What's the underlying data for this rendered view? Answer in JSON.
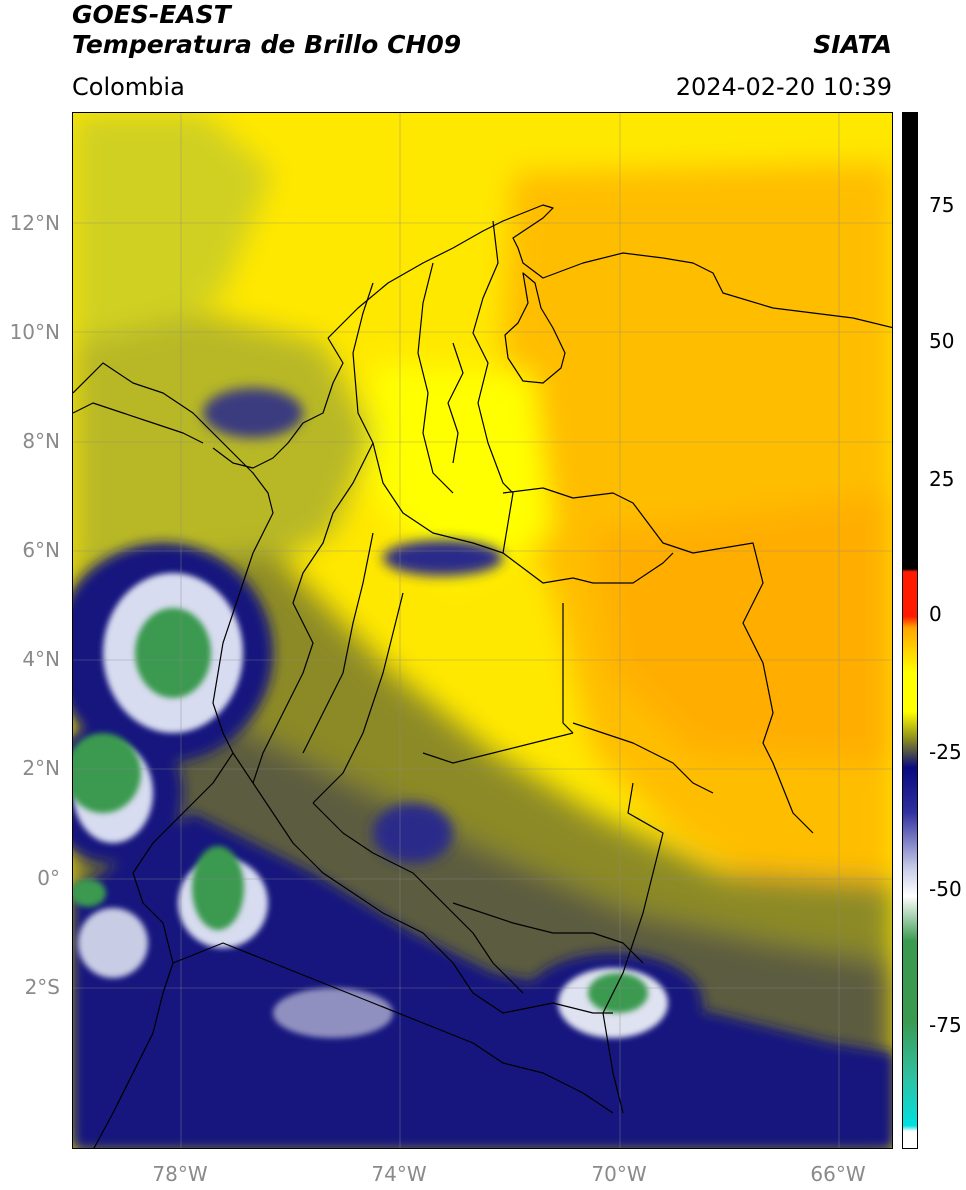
{
  "header": {
    "satellite": "GOES-EAST",
    "product": "Temperatura de Brillo CH09",
    "agency": "SIATA",
    "region": "Colombia",
    "timestamp": "2024-02-20 10:39"
  },
  "map": {
    "extent": {
      "lon_min": -79.9,
      "lon_max": -64.95,
      "lat_min": -4.3,
      "lat_max": 14.0
    },
    "lat_ticks": [
      {
        "value": 12,
        "label": "12°N"
      },
      {
        "value": 10,
        "label": "10°N"
      },
      {
        "value": 8,
        "label": "8°N"
      },
      {
        "value": 6,
        "label": "6°N"
      },
      {
        "value": 4,
        "label": "4°N"
      },
      {
        "value": 2,
        "label": "2°N"
      },
      {
        "value": 0,
        "label": "0°"
      },
      {
        "value": -2,
        "label": "2°S"
      }
    ],
    "lon_ticks": [
      {
        "value": -78,
        "label": "78°W"
      },
      {
        "value": -74,
        "label": "74°W"
      },
      {
        "value": -70,
        "label": "70°W"
      },
      {
        "value": -66,
        "label": "66°W"
      }
    ],
    "gridlines": true
  },
  "colorbar": {
    "range": [
      -95,
      90
    ],
    "ticks": [
      {
        "value": 75,
        "label": "75"
      },
      {
        "value": 50,
        "label": "50"
      },
      {
        "value": 25,
        "label": "25"
      },
      {
        "value": 0,
        "label": "0"
      },
      {
        "value": -25,
        "label": "-25"
      },
      {
        "value": -50,
        "label": "-50"
      },
      {
        "value": -75,
        "label": "-75"
      }
    ],
    "colors": {
      "above_8": "#000000",
      "red": "#ff1a00",
      "orange": "#ffa500",
      "yellow": "#ffff00",
      "olive": "#8a8a20",
      "navy": "#0a0a80",
      "blue": "#3030a0",
      "white": "#ffffff",
      "green": "#3a9a50",
      "teal": "#30c0a0",
      "cyan": "#00e0e0"
    }
  }
}
